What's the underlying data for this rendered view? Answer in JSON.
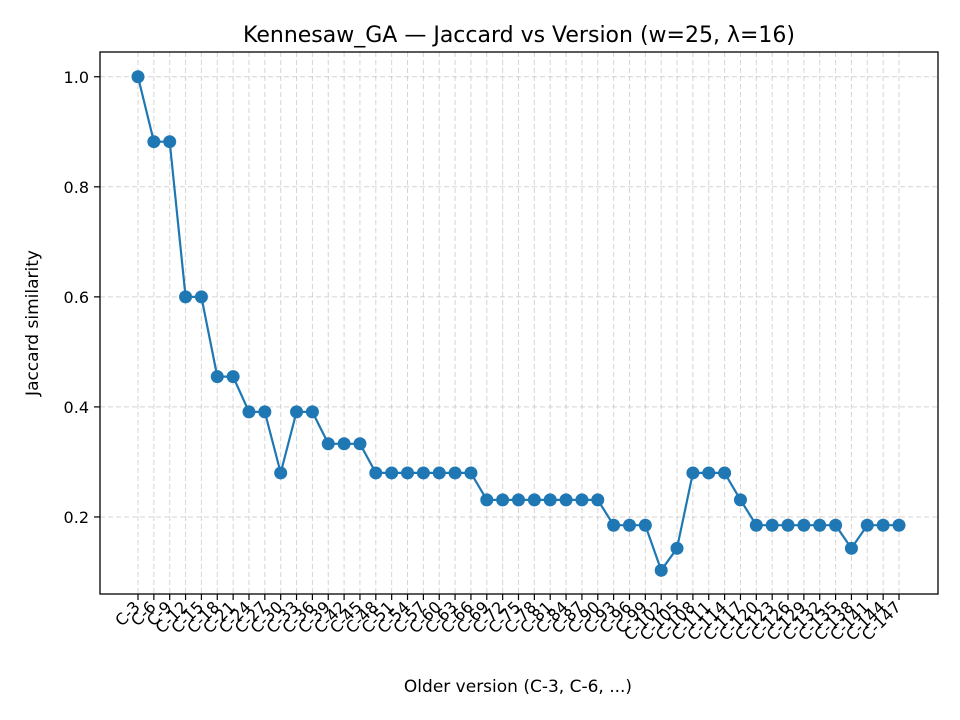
{
  "chart_data": {
    "type": "line",
    "title": "Kennesaw_GA — Jaccard vs Version (w=25, λ=16)",
    "xlabel": "Older version (C-3, C-6, ...)",
    "ylabel": "Jaccard similarity",
    "ylim": [
      0.06,
      1.045
    ],
    "yticks": [
      "0.2",
      "0.4",
      "0.6",
      "0.8",
      "1.0"
    ],
    "grid": true,
    "color": "#1f77b4",
    "categories": [
      "C-3",
      "C-6",
      "C-9",
      "C-12",
      "C-15",
      "C-18",
      "C-21",
      "C-24",
      "C-27",
      "C-30",
      "C-33",
      "C-36",
      "C-39",
      "C-42",
      "C-45",
      "C-48",
      "C-51",
      "C-54",
      "C-57",
      "C-60",
      "C-63",
      "C-66",
      "C-69",
      "C-72",
      "C-75",
      "C-78",
      "C-81",
      "C-84",
      "C-87",
      "C-90",
      "C-93",
      "C-96",
      "C-99",
      "C-102",
      "C-105",
      "C-108",
      "C-111",
      "C-114",
      "C-117",
      "C-120",
      "C-123",
      "C-126",
      "C-129",
      "C-132",
      "C-135",
      "C-138",
      "C-141",
      "C-144",
      "C-147"
    ],
    "values": [
      1.0,
      0.882,
      0.882,
      0.6,
      0.6,
      0.455,
      0.455,
      0.391,
      0.391,
      0.28,
      0.391,
      0.391,
      0.333,
      0.333,
      0.333,
      0.28,
      0.28,
      0.28,
      0.28,
      0.28,
      0.28,
      0.28,
      0.231,
      0.231,
      0.231,
      0.231,
      0.231,
      0.231,
      0.231,
      0.231,
      0.185,
      0.185,
      0.185,
      0.103,
      0.143,
      0.28,
      0.28,
      0.28,
      0.231,
      0.185,
      0.185,
      0.185,
      0.185,
      0.185,
      0.185,
      0.143,
      0.185,
      0.185,
      0.185
    ]
  }
}
